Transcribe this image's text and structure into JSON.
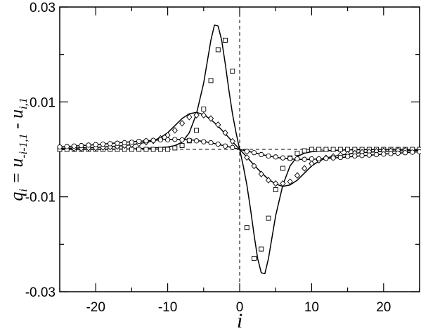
{
  "chart_data": {
    "type": "scatter",
    "title": "",
    "xlabel": "i",
    "ylabel": {
      "base": "q",
      "base_sub": "i",
      "eq": " = u",
      "term1_sub": "-i-1,1",
      "minus": " - u",
      "term2_sub": "i,1"
    },
    "xlim": [
      -25,
      25
    ],
    "ylim": [
      -0.03,
      0.03
    ],
    "xticks": [
      -20,
      -10,
      0,
      10,
      20
    ],
    "xtick_labels": [
      "-20",
      "-10",
      "0",
      "10",
      "20"
    ],
    "yticks": [
      -0.03,
      -0.01,
      0.01,
      0.03
    ],
    "ytick_labels": [
      "-0.03",
      "-0.01",
      "0.01",
      "0.03"
    ],
    "grid": false,
    "legend": "none",
    "reference_lines": {
      "x": 0,
      "y": 0
    },
    "curves": [
      {
        "style": "solid",
        "x": [
          -25,
          -20,
          -15,
          -12,
          -10,
          -9,
          -8,
          -7,
          -6,
          -5,
          -4.5,
          -4,
          -3.5,
          -3,
          -2.5,
          -2,
          -1.5,
          -1,
          -0.5,
          0,
          0.5,
          1,
          1.5,
          2,
          2.5,
          3,
          3.5,
          4,
          4.5,
          5,
          6,
          7,
          8,
          9,
          10,
          12,
          15,
          20,
          25
        ],
        "y": [
          0,
          0,
          0.0001,
          0.0003,
          0.0005,
          0.0008,
          0.0015,
          0.0035,
          0.0075,
          0.014,
          0.0185,
          0.023,
          0.0262,
          0.026,
          0.023,
          0.018,
          0.0125,
          0.0075,
          0.0035,
          0,
          -0.0035,
          -0.0075,
          -0.0125,
          -0.018,
          -0.023,
          -0.026,
          -0.0262,
          -0.023,
          -0.0185,
          -0.014,
          -0.0075,
          -0.0035,
          -0.0015,
          -0.0008,
          -0.0005,
          -0.0003,
          -0.0001,
          0,
          0
        ]
      },
      {
        "style": "solid",
        "x": [
          -25,
          -20,
          -16,
          -14,
          -12,
          -11,
          -10,
          -9,
          -8,
          -7,
          -6,
          -5,
          -4,
          -3,
          -2,
          -1,
          0,
          1,
          2,
          3,
          4,
          5,
          6,
          7,
          8,
          9,
          10,
          11,
          12,
          14,
          16,
          20,
          25
        ],
        "y": [
          0.0002,
          0.0004,
          0.0008,
          0.0012,
          0.0018,
          0.0025,
          0.0035,
          0.005,
          0.0065,
          0.0075,
          0.0078,
          0.0073,
          0.0063,
          0.0049,
          0.0033,
          0.0016,
          0,
          -0.0016,
          -0.0033,
          -0.0049,
          -0.0063,
          -0.0073,
          -0.0078,
          -0.0075,
          -0.0065,
          -0.005,
          -0.0035,
          -0.0025,
          -0.0018,
          -0.0012,
          -0.0008,
          -0.0004,
          -0.0002
        ]
      },
      {
        "style": "solid",
        "x": [
          -25,
          -20,
          -15,
          -10,
          -8,
          -6,
          -4,
          -2,
          0,
          2,
          4,
          6,
          8,
          10,
          15,
          20,
          25
        ],
        "y": [
          0.0005,
          0.001,
          0.0016,
          0.0021,
          0.0021,
          0.0019,
          0.0014,
          0.0007,
          0,
          -0.0007,
          -0.0014,
          -0.0019,
          -0.0021,
          -0.0021,
          -0.0016,
          -0.001,
          -0.0005
        ]
      }
    ],
    "series": [
      {
        "marker": "square",
        "x": [
          -25,
          -24,
          -23,
          -22,
          -21,
          -20,
          -19,
          -18,
          -17,
          -16,
          -15,
          -14,
          -13,
          -12,
          -11,
          -10,
          -9,
          -8,
          -7,
          -6,
          -5,
          -4,
          -3,
          -2,
          -1,
          1,
          2,
          3,
          4,
          5,
          6,
          7,
          8,
          9,
          10,
          11,
          12,
          13,
          14,
          15,
          16,
          17,
          18,
          19,
          20,
          21,
          22,
          23,
          24,
          25
        ],
        "y": [
          0,
          0,
          0,
          0,
          0,
          0,
          0,
          0,
          0,
          0,
          0,
          0,
          0,
          0,
          0,
          0,
          0.0003,
          0.0008,
          0.0018,
          0.004,
          0.0085,
          0.0145,
          0.021,
          0.023,
          0.0165,
          -0.0165,
          -0.023,
          -0.021,
          -0.0145,
          -0.0085,
          -0.004,
          -0.0018,
          -0.0008,
          -0.0003,
          0,
          0,
          0,
          0,
          0,
          0,
          0,
          0,
          0,
          0,
          0,
          0,
          0,
          0,
          0,
          0
        ]
      },
      {
        "marker": "diamond",
        "x": [
          -23,
          -22,
          -21,
          -20,
          -19,
          -18,
          -17,
          -16,
          -15,
          -14,
          -13,
          -12,
          -11,
          -10,
          -9,
          -8,
          -7,
          -6,
          -5,
          -4,
          -3,
          -2,
          -1,
          1,
          2,
          3,
          4,
          5,
          6,
          7,
          8,
          9,
          10,
          11,
          12,
          13,
          14,
          15,
          16,
          17,
          18,
          19,
          20,
          21,
          22,
          23
        ],
        "y": [
          0.0002,
          0.0002,
          0.0003,
          0.0003,
          0.0004,
          0.0005,
          0.0006,
          0.0008,
          0.001,
          0.0012,
          0.0015,
          0.0018,
          0.0023,
          0.003,
          0.004,
          0.0055,
          0.0068,
          0.0072,
          0.0072,
          0.0065,
          0.0052,
          0.0035,
          0.0017,
          -0.0017,
          -0.0035,
          -0.0052,
          -0.0065,
          -0.0072,
          -0.0072,
          -0.0068,
          -0.0055,
          -0.004,
          -0.003,
          -0.0023,
          -0.0018,
          -0.0015,
          -0.0012,
          -0.001,
          -0.0008,
          -0.0006,
          -0.0005,
          -0.0004,
          -0.0003,
          -0.0003,
          -0.0002,
          -0.0002
        ]
      },
      {
        "marker": "circle",
        "x": [
          -25,
          -24,
          -23,
          -22,
          -21,
          -20,
          -19,
          -18,
          -17,
          -16,
          -15,
          -14,
          -13,
          -12,
          -11,
          -10,
          -9,
          -8,
          -7,
          -6,
          -5,
          -4,
          -3,
          -2,
          -1,
          1,
          2,
          3,
          4,
          5,
          6,
          7,
          8,
          9,
          10,
          11,
          12,
          13,
          14,
          15,
          16,
          17,
          18,
          19,
          20,
          21,
          22,
          23,
          24,
          25
        ],
        "y": [
          0.0005,
          0.0006,
          0.0007,
          0.0008,
          0.0009,
          0.001,
          0.0011,
          0.0012,
          0.0013,
          0.0014,
          0.0015,
          0.0017,
          0.0018,
          0.0019,
          0.002,
          0.002,
          0.0021,
          0.002,
          0.0019,
          0.0018,
          0.0016,
          0.0014,
          0.0011,
          0.0007,
          0.0004,
          -0.0004,
          -0.0007,
          -0.0011,
          -0.0014,
          -0.0016,
          -0.0018,
          -0.0019,
          -0.002,
          -0.0021,
          -0.002,
          -0.002,
          -0.0019,
          -0.0018,
          -0.0017,
          -0.0015,
          -0.0014,
          -0.0013,
          -0.0012,
          -0.0011,
          -0.001,
          -0.0009,
          -0.0008,
          -0.0007,
          -0.0006,
          -0.0005
        ]
      }
    ]
  }
}
